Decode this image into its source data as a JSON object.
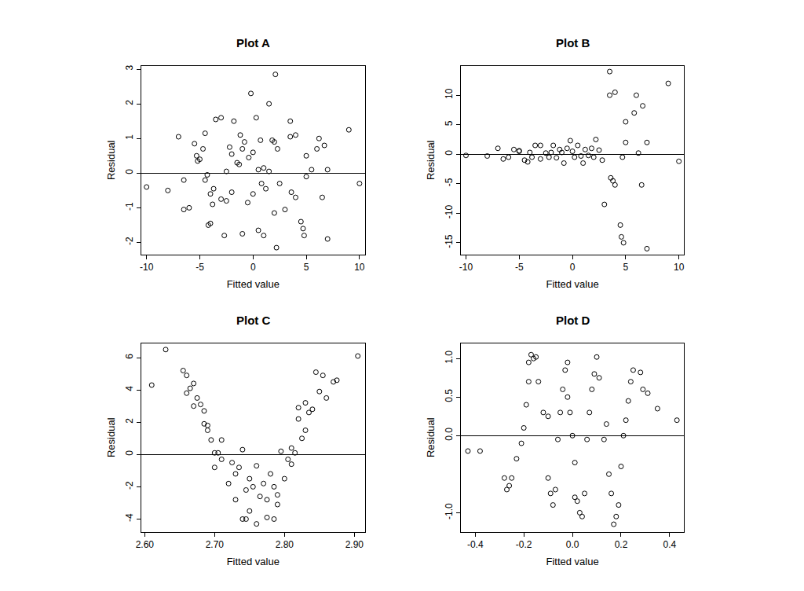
{
  "chart_data": [
    {
      "type": "scatter",
      "title": "Plot A",
      "x_label": "Fitted value",
      "y_label": "Residual",
      "marker": "circle-open",
      "color": "#000000",
      "xlim": [
        -10.5,
        10.5
      ],
      "ylim": [
        -2.35,
        3.1
      ],
      "xticks": [
        -10,
        -5,
        0,
        5,
        10
      ],
      "yticks": [
        -2,
        -1,
        0,
        1,
        2,
        3
      ],
      "x": [
        -10,
        -8,
        -7,
        -6.5,
        -6.5,
        -6,
        -5.5,
        -5.3,
        -5.2,
        -5,
        -4.7,
        -4.5,
        -4.5,
        -4.3,
        -4.2,
        -4,
        -4,
        -3.8,
        -3.7,
        -3.5,
        -3,
        -3,
        -2.7,
        -2.5,
        -2.5,
        -2.2,
        -2,
        -2,
        -1.8,
        -1.5,
        -1.3,
        -1.2,
        -1,
        -1,
        -0.8,
        -0.5,
        -0.4,
        -0.2,
        0,
        0,
        0.3,
        0.5,
        0.5,
        0.7,
        0.8,
        1,
        1,
        1.2,
        1.5,
        1.5,
        1.8,
        2,
        2,
        2.1,
        2.2,
        2.3,
        2.5,
        3,
        3.5,
        3.5,
        3.6,
        4,
        4,
        4.5,
        4.7,
        4.8,
        5,
        5,
        5.5,
        6,
        6.2,
        6.5,
        6.7,
        7,
        7,
        9,
        10
      ],
      "values": [
        -0.4,
        -0.5,
        1.05,
        -1.05,
        -0.2,
        -1,
        0.85,
        0.5,
        0.35,
        0.4,
        0.7,
        1.15,
        -0.2,
        -0.05,
        -1.5,
        -1.45,
        -0.6,
        -0.9,
        -0.45,
        1.55,
        1.6,
        -0.75,
        -1.8,
        -0.8,
        0.05,
        0.75,
        0.55,
        -0.55,
        1.5,
        0.3,
        0.25,
        1.1,
        0.7,
        -1.75,
        0.9,
        -0.85,
        0.45,
        2.3,
        -0.6,
        0.6,
        1.6,
        0.1,
        -1.65,
        0.95,
        -0.3,
        -1.8,
        0.15,
        -0.45,
        2,
        0.05,
        0.95,
        -1.15,
        0.9,
        2.85,
        -2.15,
        0.7,
        -0.3,
        -1.05,
        1.05,
        1.5,
        -0.55,
        -0.7,
        1.1,
        -1.4,
        -1.6,
        -1.8,
        0.5,
        -0.1,
        0.1,
        0.7,
        1,
        -0.7,
        0.8,
        0.1,
        -1.9,
        1.25,
        -0.3
      ]
    },
    {
      "type": "scatter",
      "title": "Plot B",
      "x_label": "Fitted value",
      "y_label": "Residual",
      "marker": "circle-open",
      "color": "#000000",
      "xlim": [
        -10.5,
        10.5
      ],
      "ylim": [
        -17,
        15
      ],
      "xticks": [
        -10,
        -5,
        0,
        5,
        10
      ],
      "yticks": [
        -15,
        -10,
        -5,
        0,
        5,
        10
      ],
      "x": [
        -10,
        -8,
        -7,
        -6.5,
        -6,
        -5.5,
        -5,
        -5,
        -4.5,
        -4.2,
        -4,
        -3.8,
        -3.5,
        -3,
        -3,
        -2.5,
        -2.2,
        -2,
        -1.8,
        -1.5,
        -1.2,
        -1,
        -0.8,
        -0.5,
        -0.2,
        0,
        0.2,
        0.5,
        0.8,
        1,
        1.2,
        1.5,
        1.8,
        2,
        2.2,
        2.5,
        2.8,
        3,
        3.5,
        3.5,
        3.6,
        3.8,
        4,
        4,
        4.5,
        4.6,
        4.8,
        4.7,
        5,
        5,
        5.8,
        6,
        6.2,
        6.5,
        6.6,
        7,
        7,
        9,
        10
      ],
      "values": [
        -0.2,
        -0.3,
        1,
        -0.8,
        -0.5,
        0.8,
        0.5,
        0.6,
        -1,
        -1.3,
        0.3,
        -0.5,
        1.5,
        1.5,
        -0.8,
        0.2,
        -0.5,
        0.3,
        1.5,
        -0.6,
        0.8,
        0.3,
        -1.5,
        1,
        2.3,
        0.5,
        -0.5,
        1.5,
        -0.3,
        -1.5,
        0.8,
        -0.2,
        1,
        -0.5,
        2.5,
        0.7,
        -1,
        -8.5,
        14,
        10,
        -4,
        -4.5,
        10.5,
        -5.2,
        -12,
        -14,
        -15,
        -0.5,
        5.5,
        2,
        7,
        10,
        0.2,
        -5.2,
        8.2,
        -16,
        2,
        12,
        -1.2
      ]
    },
    {
      "type": "scatter",
      "title": "Plot C",
      "x_label": "Fitted value",
      "y_label": "Residual",
      "marker": "circle-open",
      "color": "#000000",
      "xlim": [
        2.595,
        2.915
      ],
      "ylim": [
        -4.8,
        6.9
      ],
      "xticks": [
        {
          "value": 2.6,
          "label": "2.60"
        },
        {
          "value": 2.7,
          "label": "2.70"
        },
        {
          "value": 2.8,
          "label": "2.80"
        },
        {
          "value": 2.9,
          "label": "2.90"
        }
      ],
      "yticks": [
        -4,
        -2,
        0,
        2,
        4,
        6
      ],
      "x": [
        2.61,
        2.63,
        2.655,
        2.66,
        2.66,
        2.665,
        2.67,
        2.67,
        2.675,
        2.68,
        2.685,
        2.685,
        2.69,
        2.69,
        2.695,
        2.7,
        2.7,
        2.705,
        2.71,
        2.71,
        2.72,
        2.725,
        2.73,
        2.73,
        2.735,
        2.74,
        2.74,
        2.745,
        2.745,
        2.75,
        2.75,
        2.755,
        2.76,
        2.76,
        2.765,
        2.77,
        2.775,
        2.775,
        2.78,
        2.785,
        2.785,
        2.79,
        2.79,
        2.795,
        2.8,
        2.805,
        2.81,
        2.81,
        2.815,
        2.82,
        2.82,
        2.825,
        2.83,
        2.83,
        2.835,
        2.84,
        2.845,
        2.85,
        2.855,
        2.86,
        2.87,
        2.875,
        2.905
      ],
      "values": [
        4.3,
        6.5,
        5.2,
        4.9,
        3.8,
        4.1,
        4.4,
        3,
        3.5,
        3.1,
        2.7,
        1.9,
        1.5,
        1.8,
        0.9,
        -0.8,
        0.1,
        0.1,
        0.9,
        -0.3,
        -1.8,
        -0.5,
        -1.2,
        -2.8,
        -0.8,
        0.3,
        -4,
        -2.2,
        -4,
        -1.5,
        -3.5,
        -2,
        -0.7,
        -4.3,
        -2.6,
        -1.8,
        -2.8,
        -3.9,
        -1.2,
        -4,
        -2,
        -2.5,
        -3.1,
        0.2,
        -1.5,
        -0.3,
        -0.6,
        0.4,
        0.1,
        2.9,
        2.2,
        1,
        3.2,
        1.5,
        2.6,
        2.8,
        5.1,
        3.9,
        4.9,
        3.5,
        4.5,
        4.6,
        6.1
      ]
    },
    {
      "type": "scatter",
      "title": "Plot D",
      "x_label": "Fitted value",
      "y_label": "Residual",
      "marker": "circle-open",
      "color": "#000000",
      "xlim": [
        -0.46,
        0.46
      ],
      "ylim": [
        -1.25,
        1.2
      ],
      "xticks": [
        -0.4,
        -0.2,
        {
          "value": 0,
          "label": "0.0"
        },
        0.2,
        0.4
      ],
      "yticks": [
        {
          "value": -1,
          "label": "-1.0"
        },
        {
          "value": 0,
          "label": "0.0"
        },
        0.5,
        {
          "value": 1,
          "label": "1.0"
        }
      ],
      "x": [
        -0.43,
        -0.38,
        -0.28,
        -0.27,
        -0.26,
        -0.25,
        -0.23,
        -0.21,
        -0.2,
        -0.19,
        -0.18,
        -0.18,
        -0.17,
        -0.16,
        -0.15,
        -0.14,
        -0.12,
        -0.1,
        -0.1,
        -0.09,
        -0.08,
        -0.07,
        -0.06,
        -0.05,
        -0.04,
        -0.03,
        -0.02,
        -0.02,
        -0.01,
        0,
        0.01,
        0.01,
        0.02,
        0.03,
        0.04,
        0.05,
        0.06,
        0.07,
        0.08,
        0.09,
        0.1,
        0.11,
        0.13,
        0.14,
        0.15,
        0.16,
        0.17,
        0.18,
        0.19,
        0.2,
        0.21,
        0.22,
        0.23,
        0.24,
        0.25,
        0.28,
        0.29,
        0.31,
        0.35,
        0.43
      ],
      "values": [
        -0.2,
        -0.2,
        -0.55,
        -0.7,
        -0.65,
        -0.55,
        -0.3,
        -0.1,
        0.1,
        0.4,
        0.7,
        0.95,
        1.05,
        1,
        1.02,
        0.7,
        0.3,
        0.25,
        -0.55,
        -0.75,
        -0.9,
        -0.7,
        -0.05,
        0.3,
        0.6,
        0.85,
        0.95,
        0.5,
        0.3,
        0,
        -0.35,
        -0.8,
        -0.85,
        -1,
        -1.05,
        -0.75,
        -0.05,
        0.3,
        0.6,
        0.8,
        1.02,
        0.75,
        -0.05,
        0.15,
        -0.5,
        -0.75,
        -1.15,
        -1.05,
        -0.9,
        -0.4,
        0,
        0.2,
        0.45,
        0.7,
        0.85,
        0.82,
        0.6,
        0.55,
        0.35,
        0.2
      ]
    }
  ]
}
